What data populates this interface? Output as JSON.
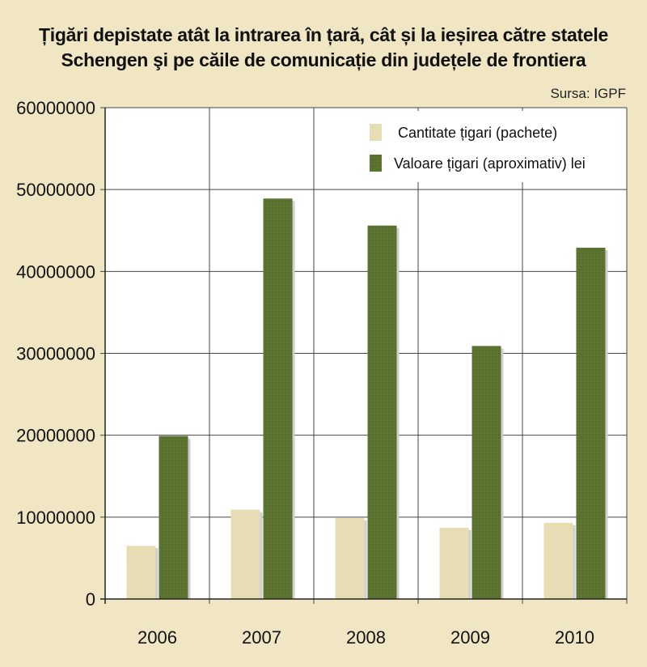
{
  "chart_data": {
    "type": "bar",
    "title_lines": [
      "Țigări depistate atât la intrarea în țară, cât și la ieșirea către statele",
      "Schengen şi pe căile de comunicație din județele de frontiera"
    ],
    "source": "Sursa: IGPF",
    "categories": [
      "2006",
      "2007",
      "2008",
      "2009",
      "2010"
    ],
    "series": [
      {
        "name": "Cantitate țigari (pachete)",
        "color": "#e7ddb4",
        "values": [
          6500000,
          10900000,
          9900000,
          8700000,
          9300000
        ]
      },
      {
        "name": "Valoare țigari (aproximativ) lei",
        "color": "#5d7530",
        "values": [
          19900000,
          48900000,
          45600000,
          30900000,
          42900000
        ]
      }
    ],
    "yticks": [
      "0",
      "10000000",
      "20000000",
      "30000000",
      "40000000",
      "50000000",
      "60000000"
    ],
    "ylim": [
      0,
      60000000
    ],
    "xlabel": "",
    "ylabel": "",
    "legend_position": "top-right",
    "grid": true
  },
  "colors": {
    "plot_bg": "#ffffff",
    "page_bg": "#f1e6c3",
    "grid": "#444444"
  }
}
